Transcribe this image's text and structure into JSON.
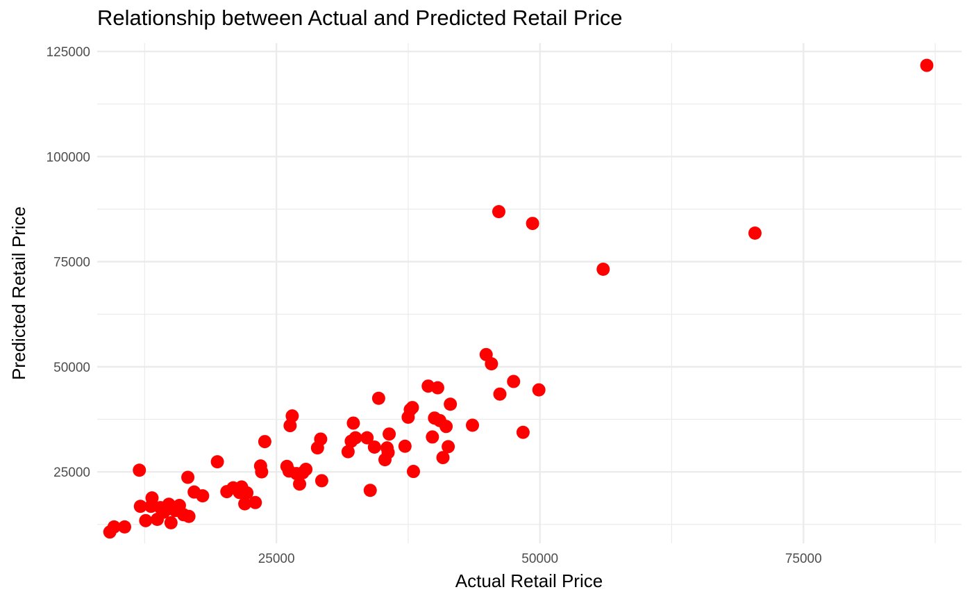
{
  "chart_data": {
    "type": "scatter",
    "title": "Relationship between Actual and Predicted Retail Price",
    "xlabel": "Actual Retail Price",
    "ylabel": "Predicted Retail Price",
    "xlim": [
      8000,
      90000
    ],
    "ylim": [
      8000,
      127000
    ],
    "xticks": [
      25000,
      50000,
      75000
    ],
    "yticks": [
      25000,
      50000,
      75000,
      100000,
      125000
    ],
    "x_minor_gridlines": [
      12500,
      37500,
      62500,
      87500
    ],
    "y_minor_gridlines": [
      12500,
      37500,
      62500,
      87500,
      112500
    ],
    "grid": true,
    "point_color": "#ff0000",
    "gridline_color": "#ebebeb",
    "points": [
      [
        9200,
        10700
      ],
      [
        9600,
        11900
      ],
      [
        10600,
        11900
      ],
      [
        12000,
        25400
      ],
      [
        12100,
        16800
      ],
      [
        12600,
        13400
      ],
      [
        13100,
        16800
      ],
      [
        13200,
        18800
      ],
      [
        13700,
        13700
      ],
      [
        14000,
        16500
      ],
      [
        14300,
        15400
      ],
      [
        14600,
        16100
      ],
      [
        14800,
        17300
      ],
      [
        15000,
        12900
      ],
      [
        15400,
        15800
      ],
      [
        15800,
        17000
      ],
      [
        16200,
        14800
      ],
      [
        16600,
        23700
      ],
      [
        16700,
        14400
      ],
      [
        17200,
        20200
      ],
      [
        18000,
        19300
      ],
      [
        19400,
        27400
      ],
      [
        20300,
        20300
      ],
      [
        20900,
        21200
      ],
      [
        21500,
        20100
      ],
      [
        21700,
        21400
      ],
      [
        22000,
        17400
      ],
      [
        22200,
        20000
      ],
      [
        23000,
        17700
      ],
      [
        23500,
        26400
      ],
      [
        23600,
        25000
      ],
      [
        23900,
        32200
      ],
      [
        26000,
        26300
      ],
      [
        26200,
        25200
      ],
      [
        26300,
        36000
      ],
      [
        26500,
        38300
      ],
      [
        26900,
        24600
      ],
      [
        27200,
        22100
      ],
      [
        27500,
        24800
      ],
      [
        27800,
        25600
      ],
      [
        28900,
        30700
      ],
      [
        29200,
        32800
      ],
      [
        29300,
        22900
      ],
      [
        31800,
        29800
      ],
      [
        32100,
        32300
      ],
      [
        32300,
        36600
      ],
      [
        32500,
        33100
      ],
      [
        33600,
        33100
      ],
      [
        33900,
        20600
      ],
      [
        34300,
        30900
      ],
      [
        34700,
        42500
      ],
      [
        35300,
        27900
      ],
      [
        35500,
        30700
      ],
      [
        35600,
        29600
      ],
      [
        35700,
        34000
      ],
      [
        37200,
        31100
      ],
      [
        37500,
        38000
      ],
      [
        37700,
        39800
      ],
      [
        37900,
        40300
      ],
      [
        38000,
        25100
      ],
      [
        39400,
        45400
      ],
      [
        39800,
        33300
      ],
      [
        40000,
        37800
      ],
      [
        40300,
        45000
      ],
      [
        40500,
        37200
      ],
      [
        40800,
        28400
      ],
      [
        41100,
        35800
      ],
      [
        41300,
        31000
      ],
      [
        41500,
        41100
      ],
      [
        43600,
        36100
      ],
      [
        44900,
        52900
      ],
      [
        45400,
        50700
      ],
      [
        46100,
        86900
      ],
      [
        46200,
        43500
      ],
      [
        47500,
        46500
      ],
      [
        48400,
        34400
      ],
      [
        49300,
        84100
      ],
      [
        49900,
        44500
      ],
      [
        56000,
        73200
      ],
      [
        70400,
        81800
      ],
      [
        86700,
        121700
      ]
    ]
  }
}
